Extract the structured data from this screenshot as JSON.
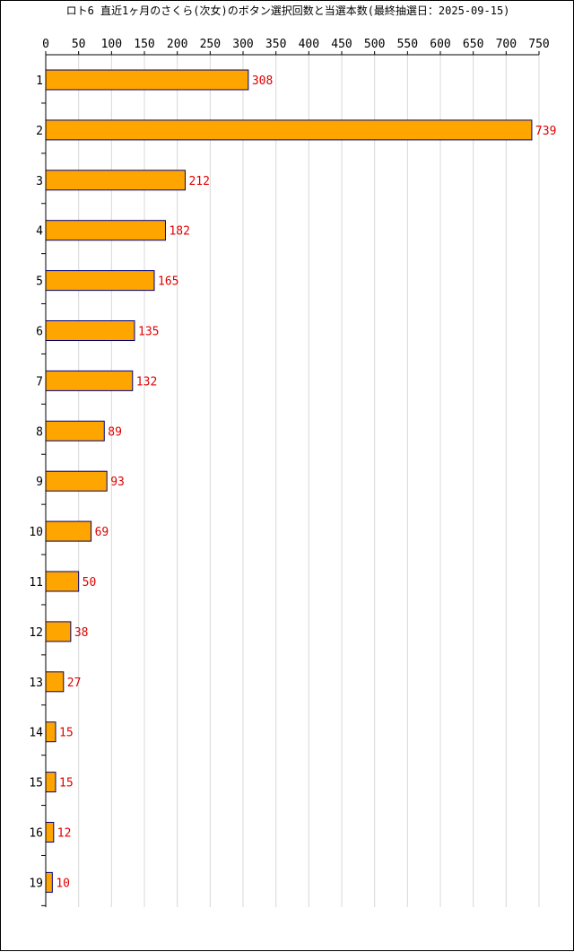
{
  "chart_data": {
    "type": "bar",
    "orientation": "horizontal",
    "title": "ロト6 直近1ヶ月のさくら(次女)のボタン選択回数と当選本数(最終抽選日：2025-09-15)",
    "categories": [
      "1",
      "2",
      "3",
      "4",
      "5",
      "6",
      "7",
      "8",
      "9",
      "10",
      "11",
      "12",
      "13",
      "14",
      "15",
      "16",
      "19"
    ],
    "values": [
      308,
      739,
      212,
      182,
      165,
      135,
      132,
      89,
      93,
      69,
      50,
      38,
      27,
      15,
      15,
      12,
      10
    ],
    "x_ticks": [
      0,
      50,
      100,
      150,
      200,
      250,
      300,
      350,
      400,
      450,
      500,
      550,
      600,
      650,
      700,
      750
    ],
    "xlim": [
      0,
      750
    ],
    "xlabel": "",
    "ylabel": "",
    "grid": true,
    "legend": "none",
    "colors": {
      "bar_fill": "#ffa500",
      "bar_stroke": "#000080",
      "data_label": "#e00000",
      "grid": "#d8d8d8",
      "axis": "#000000"
    }
  }
}
